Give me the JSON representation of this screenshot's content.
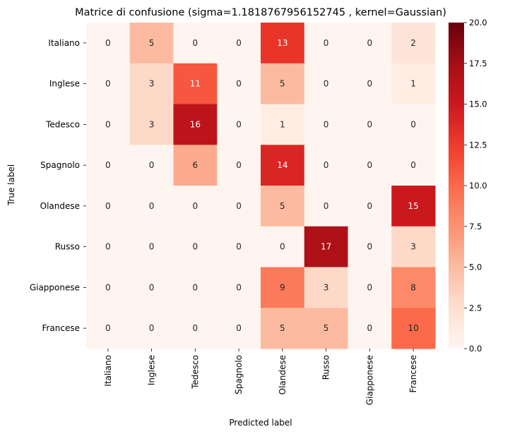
{
  "chart_data": {
    "type": "heatmap",
    "title": "Matrice di confusione (sigma=1.1818767956152745 , kernel=Gaussian)",
    "xlabel": "Predicted label",
    "ylabel": "True label",
    "x_categories": [
      "Italiano",
      "Inglese",
      "Tedesco",
      "Spagnolo",
      "Olandese",
      "Russo",
      "Giapponese",
      "Francese"
    ],
    "y_categories": [
      "Italiano",
      "Inglese",
      "Tedesco",
      "Spagnolo",
      "Olandese",
      "Russo",
      "Giapponese",
      "Francese"
    ],
    "values": [
      [
        0,
        5,
        0,
        0,
        13,
        0,
        0,
        2
      ],
      [
        0,
        3,
        11,
        0,
        5,
        0,
        0,
        1
      ],
      [
        0,
        3,
        16,
        0,
        1,
        0,
        0,
        0
      ],
      [
        0,
        0,
        6,
        0,
        14,
        0,
        0,
        0
      ],
      [
        0,
        0,
        0,
        0,
        5,
        0,
        0,
        15
      ],
      [
        0,
        0,
        0,
        0,
        0,
        17,
        0,
        3
      ],
      [
        0,
        0,
        0,
        0,
        9,
        3,
        0,
        8
      ],
      [
        0,
        0,
        0,
        0,
        5,
        5,
        0,
        10
      ]
    ],
    "colormap": "Reds",
    "vmin": 0,
    "vmax": 20,
    "colorbar_ticks": [
      "0.0",
      "2.5",
      "5.0",
      "7.5",
      "10.0",
      "12.5",
      "15.0",
      "17.5",
      "20.0"
    ]
  }
}
